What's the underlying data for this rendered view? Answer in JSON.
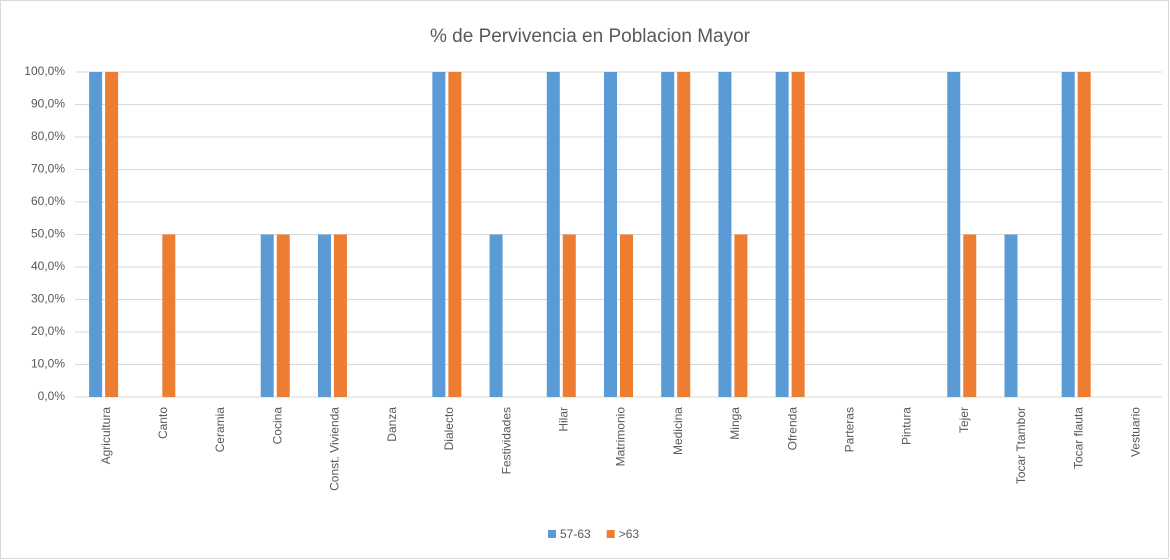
{
  "chart_data": {
    "type": "bar",
    "title": "% de Pervivencia en Poblacion Mayor",
    "categories": [
      "Agricultura",
      "Canto",
      "Ceramia",
      "Cocina",
      "Const. Vivienda",
      "Danza",
      "Dialecto",
      "Festividades",
      "Hilar",
      "Matrimonio",
      "Medicina",
      "Minga",
      "Ofrenda",
      "Parteras",
      "Pintura",
      "Tejer",
      "Tocar Ttambor",
      "Tocar flauta",
      "Vestuario"
    ],
    "series": [
      {
        "name": "57-63",
        "color": "#5b9bd5",
        "values": [
          100,
          0,
          0,
          50,
          50,
          0,
          100,
          50,
          100,
          100,
          100,
          100,
          100,
          0,
          0,
          100,
          50,
          100,
          0
        ]
      },
      {
        "name": ">63",
        "color": "#ed7d31",
        "values": [
          100,
          50,
          0,
          50,
          50,
          0,
          100,
          0,
          50,
          50,
          100,
          50,
          100,
          0,
          0,
          50,
          0,
          100,
          0
        ]
      }
    ],
    "ylim": [
      0,
      100
    ],
    "yticks": [
      {
        "value": 0,
        "label": "0,0%"
      },
      {
        "value": 10,
        "label": "10,0%"
      },
      {
        "value": 20,
        "label": "20,0%"
      },
      {
        "value": 30,
        "label": "30,0%"
      },
      {
        "value": 40,
        "label": "40,0%"
      },
      {
        "value": 50,
        "label": "50,0%"
      },
      {
        "value": 60,
        "label": "60,0%"
      },
      {
        "value": 70,
        "label": "70,0%"
      },
      {
        "value": 80,
        "label": "80,0%"
      },
      {
        "value": 90,
        "label": "90,0%"
      },
      {
        "value": 100,
        "label": "100,0%"
      }
    ],
    "grid": true,
    "legend": "bottom"
  }
}
